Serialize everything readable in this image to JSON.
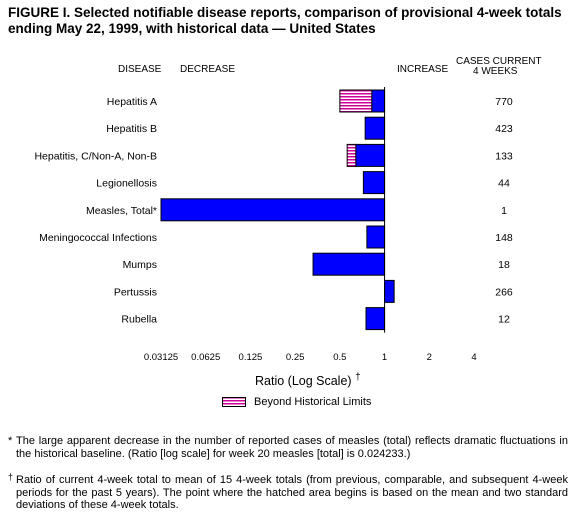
{
  "title": "FIGURE I. Selected notifiable disease reports, comparison of provisional 4-week totals ending May 22, 1999, with historical data — United States",
  "headers": {
    "disease": "DISEASE",
    "decrease": "DECREASE",
    "increase": "INCREASE",
    "cases_line1": "CASES CURRENT",
    "cases_line2": "4 WEEKS"
  },
  "colors": {
    "bar": "#0000ff",
    "hatch": "#cc0099",
    "outline": "#000000"
  },
  "chart_data": {
    "type": "bar",
    "orientation": "horizontal",
    "scale": "log2",
    "xlabel": "Ratio (Log Scale)",
    "xlabel_mark": "†",
    "xlim": [
      0.03125,
      4
    ],
    "baseline": 1,
    "ticks": [
      {
        "value": 0.03125,
        "label": "0.03125"
      },
      {
        "value": 0.0625,
        "label": "0.0625"
      },
      {
        "value": 0.125,
        "label": "0.125"
      },
      {
        "value": 0.25,
        "label": "0.25"
      },
      {
        "value": 0.5,
        "label": "0.5"
      },
      {
        "value": 1,
        "label": "1"
      },
      {
        "value": 2,
        "label": "2"
      },
      {
        "value": 4,
        "label": "4"
      }
    ],
    "categories": [
      "Hepatitis A",
      "Hepatitis B",
      "Hepatitis, C/Non-A, Non-B",
      "Legionellosis",
      "Measles, Total*",
      "Meningococcal Infections",
      "Mumps",
      "Pertussis",
      "Rubella"
    ],
    "values": [
      0.5,
      0.74,
      0.56,
      0.72,
      0.03125,
      0.76,
      0.33,
      1.16,
      0.75
    ],
    "beyond_limit_at": [
      0.82,
      null,
      0.64,
      null,
      null,
      null,
      null,
      null,
      null
    ],
    "cases": [
      "770",
      "423",
      "133",
      "44",
      "1",
      "148",
      "18",
      "266",
      "12"
    ],
    "legend": [
      {
        "name": "Beyond Historical Limits",
        "style": "hatched"
      }
    ]
  },
  "footnotes": {
    "star_mark": "*",
    "star_text": "The large apparent decrease in the number of reported cases of measles (total) reflects dramatic fluctuations in the historical baseline. (Ratio [log scale] for week 20 measles [total] is 0.024233.)",
    "dagger_mark": "†",
    "dagger_text": "Ratio of current 4-week total to mean of 15 4-week totals (from previous, comparable, and subsequent 4-week periods for the past 5 years). The point where the hatched area begins is based on the mean and two standard deviations of these 4-week totals."
  }
}
